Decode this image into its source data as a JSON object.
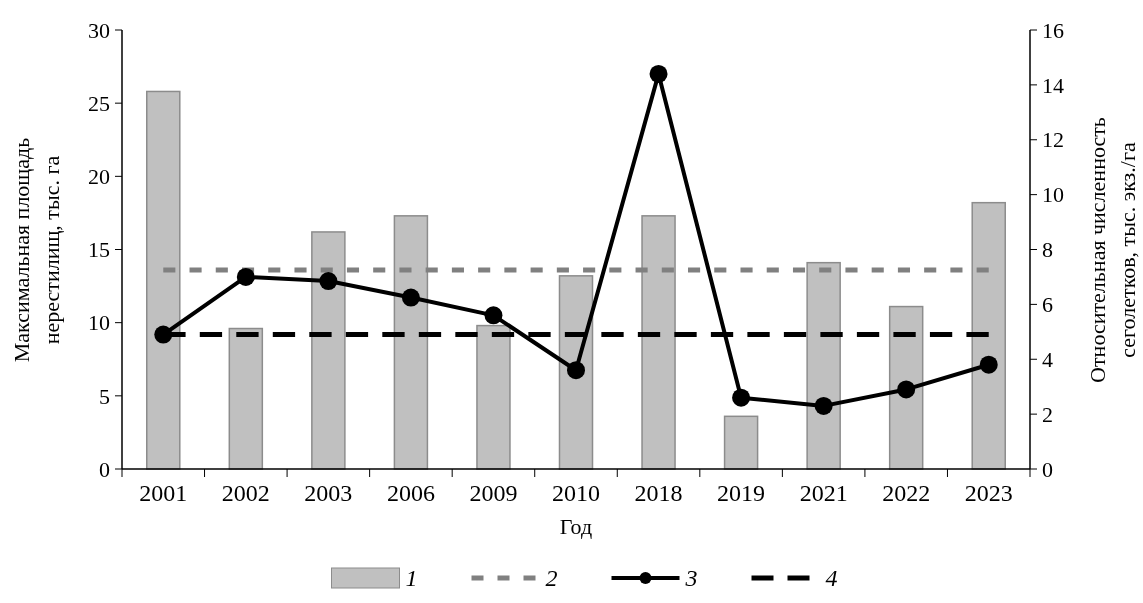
{
  "chart_data": {
    "type": "bar",
    "xlabel": "Год",
    "ylabel": "Максимальная площадь нерестилищ, тыс. га",
    "y2label": "Относительная численность сеголетков, тыс. экз./га",
    "categories": [
      "2001",
      "2002",
      "2003",
      "2006",
      "2009",
      "2010",
      "2018",
      "2019",
      "2021",
      "2022",
      "2023"
    ],
    "series": [
      {
        "name": "1",
        "color": "#c0c0c0",
        "values": [
          25.8,
          9.6,
          16.2,
          17.3,
          9.8,
          13.2,
          17.3,
          3.6,
          14.1,
          11.1,
          18.2
        ]
      },
      {
        "name": "2",
        "type": "line",
        "color": "#808080",
        "line_style": "dashed",
        "marker": "none",
        "values": [
          13.6,
          13.6,
          13.6,
          13.6,
          13.6,
          13.6,
          13.6,
          13.6,
          13.6,
          13.6,
          13.6
        ]
      },
      {
        "name": "3",
        "type": "line",
        "color": "#000000",
        "line_style": "solid",
        "marker": "circle",
        "axis": "y2",
        "values": [
          4.9,
          7.0,
          6.85,
          6.25,
          5.6,
          3.6,
          14.4,
          2.6,
          2.3,
          2.9,
          3.8
        ]
      },
      {
        "name": "4",
        "type": "line",
        "color": "#000000",
        "line_style": "dashed",
        "marker": "none",
        "axis": "y2",
        "values": [
          4.9,
          4.9,
          4.9,
          4.9,
          4.9,
          4.9,
          4.9,
          4.9,
          4.9,
          4.9,
          4.9
        ]
      }
    ],
    "ylim": [
      0,
      30
    ],
    "yticks": [
      0,
      5,
      10,
      15,
      20,
      25,
      30
    ],
    "y2lim": [
      0,
      16
    ],
    "y2ticks": [
      0,
      2,
      4,
      6,
      8,
      10,
      12,
      14,
      16
    ],
    "grid": false,
    "legend": "bottom"
  }
}
